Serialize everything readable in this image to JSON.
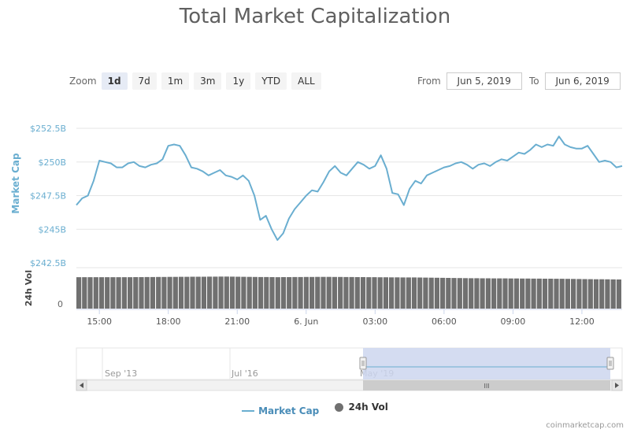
{
  "title": "Total Market Capitalization",
  "zoom": {
    "label": "Zoom",
    "buttons": [
      "1d",
      "7d",
      "1m",
      "3m",
      "1y",
      "YTD",
      "ALL"
    ],
    "active": "1d"
  },
  "range": {
    "from_label": "From",
    "from_value": "Jun 5, 2019",
    "to_label": "To",
    "to_value": "Jun 6, 2019"
  },
  "legend": {
    "market_cap": "Market Cap",
    "volume": "24h Vol"
  },
  "credit": "coinmarketcap.com",
  "colors": {
    "market_cap": "#6aaed0",
    "volume": "#707070",
    "navigator_fill": "#cdd6ee"
  },
  "chart_data": [
    {
      "type": "line",
      "title": "Total Market Capitalization",
      "ylabel": "Market Cap",
      "yunit": "USD billions",
      "ylim": [
        242.5,
        252.5
      ],
      "yticks": [
        {
          "value": 252.5,
          "label": "$252.5B"
        },
        {
          "value": 250,
          "label": "$250B"
        },
        {
          "value": 247.5,
          "label": "$247.5B"
        },
        {
          "value": 245,
          "label": "$245B"
        },
        {
          "value": 242.5,
          "label": "$242.5B"
        }
      ],
      "xlim": [
        "2019-06-05 14:00",
        "2019-06-06 13:45"
      ],
      "xticks": [
        "15:00",
        "18:00",
        "21:00",
        "6. Jun",
        "03:00",
        "06:00",
        "09:00",
        "12:00"
      ],
      "grid": true,
      "series": [
        {
          "name": "Market Cap",
          "points": [
            [
              "2019-06-05 14:00",
              246.8
            ],
            [
              "2019-06-05 14:15",
              247.3
            ],
            [
              "2019-06-05 14:30",
              247.5
            ],
            [
              "2019-06-05 14:45",
              248.6
            ],
            [
              "2019-06-05 15:00",
              250.1
            ],
            [
              "2019-06-05 15:15",
              250.0
            ],
            [
              "2019-06-05 15:30",
              249.9
            ],
            [
              "2019-06-05 15:45",
              249.6
            ],
            [
              "2019-06-05 16:00",
              249.6
            ],
            [
              "2019-06-05 16:15",
              249.9
            ],
            [
              "2019-06-05 16:30",
              250.0
            ],
            [
              "2019-06-05 16:45",
              249.7
            ],
            [
              "2019-06-05 17:00",
              249.6
            ],
            [
              "2019-06-05 17:15",
              249.8
            ],
            [
              "2019-06-05 17:30",
              249.9
            ],
            [
              "2019-06-05 17:45",
              250.2
            ],
            [
              "2019-06-05 18:00",
              251.2
            ],
            [
              "2019-06-05 18:15",
              251.3
            ],
            [
              "2019-06-05 18:30",
              251.2
            ],
            [
              "2019-06-05 18:45",
              250.5
            ],
            [
              "2019-06-05 19:00",
              249.6
            ],
            [
              "2019-06-05 19:15",
              249.5
            ],
            [
              "2019-06-05 19:30",
              249.3
            ],
            [
              "2019-06-05 19:45",
              249.0
            ],
            [
              "2019-06-05 20:00",
              249.2
            ],
            [
              "2019-06-05 20:15",
              249.4
            ],
            [
              "2019-06-05 20:30",
              249.0
            ],
            [
              "2019-06-05 20:45",
              248.9
            ],
            [
              "2019-06-05 21:00",
              248.7
            ],
            [
              "2019-06-05 21:15",
              249.0
            ],
            [
              "2019-06-05 21:30",
              248.6
            ],
            [
              "2019-06-05 21:45",
              247.5
            ],
            [
              "2019-06-05 22:00",
              245.7
            ],
            [
              "2019-06-05 22:15",
              246.0
            ],
            [
              "2019-06-05 22:30",
              245.0
            ],
            [
              "2019-06-05 22:45",
              244.2
            ],
            [
              "2019-06-05 23:00",
              244.7
            ],
            [
              "2019-06-05 23:15",
              245.8
            ],
            [
              "2019-06-05 23:30",
              246.5
            ],
            [
              "2019-06-05 23:45",
              247.0
            ],
            [
              "2019-06-06 00:00",
              247.5
            ],
            [
              "2019-06-06 00:15",
              247.9
            ],
            [
              "2019-06-06 00:30",
              247.8
            ],
            [
              "2019-06-06 00:45",
              248.5
            ],
            [
              "2019-06-06 01:00",
              249.3
            ],
            [
              "2019-06-06 01:15",
              249.7
            ],
            [
              "2019-06-06 01:30",
              249.2
            ],
            [
              "2019-06-06 01:45",
              249.0
            ],
            [
              "2019-06-06 02:00",
              249.5
            ],
            [
              "2019-06-06 02:15",
              250.0
            ],
            [
              "2019-06-06 02:30",
              249.8
            ],
            [
              "2019-06-06 02:45",
              249.5
            ],
            [
              "2019-06-06 03:00",
              249.7
            ],
            [
              "2019-06-06 03:15",
              250.5
            ],
            [
              "2019-06-06 03:30",
              249.5
            ],
            [
              "2019-06-06 03:45",
              247.7
            ],
            [
              "2019-06-06 04:00",
              247.6
            ],
            [
              "2019-06-06 04:15",
              246.8
            ],
            [
              "2019-06-06 04:30",
              248.0
            ],
            [
              "2019-06-06 04:45",
              248.6
            ],
            [
              "2019-06-06 05:00",
              248.4
            ],
            [
              "2019-06-06 05:15",
              249.0
            ],
            [
              "2019-06-06 05:30",
              249.2
            ],
            [
              "2019-06-06 05:45",
              249.4
            ],
            [
              "2019-06-06 06:00",
              249.6
            ],
            [
              "2019-06-06 06:15",
              249.7
            ],
            [
              "2019-06-06 06:30",
              249.9
            ],
            [
              "2019-06-06 06:45",
              250.0
            ],
            [
              "2019-06-06 07:00",
              249.8
            ],
            [
              "2019-06-06 07:15",
              249.5
            ],
            [
              "2019-06-06 07:30",
              249.8
            ],
            [
              "2019-06-06 07:45",
              249.9
            ],
            [
              "2019-06-06 08:00",
              249.7
            ],
            [
              "2019-06-06 08:15",
              250.0
            ],
            [
              "2019-06-06 08:30",
              250.2
            ],
            [
              "2019-06-06 08:45",
              250.1
            ],
            [
              "2019-06-06 09:00",
              250.4
            ],
            [
              "2019-06-06 09:15",
              250.7
            ],
            [
              "2019-06-06 09:30",
              250.6
            ],
            [
              "2019-06-06 09:45",
              250.9
            ],
            [
              "2019-06-06 10:00",
              251.3
            ],
            [
              "2019-06-06 10:15",
              251.1
            ],
            [
              "2019-06-06 10:30",
              251.3
            ],
            [
              "2019-06-06 10:45",
              251.2
            ],
            [
              "2019-06-06 11:00",
              251.9
            ],
            [
              "2019-06-06 11:15",
              251.3
            ],
            [
              "2019-06-06 11:30",
              251.1
            ],
            [
              "2019-06-06 11:45",
              251.0
            ],
            [
              "2019-06-06 12:00",
              251.0
            ],
            [
              "2019-06-06 12:15",
              251.2
            ],
            [
              "2019-06-06 12:30",
              250.6
            ],
            [
              "2019-06-06 12:45",
              250.0
            ],
            [
              "2019-06-06 13:00",
              250.1
            ],
            [
              "2019-06-06 13:15",
              250.0
            ],
            [
              "2019-06-06 13:30",
              249.6
            ],
            [
              "2019-06-06 13:45",
              249.7
            ]
          ]
        }
      ]
    },
    {
      "type": "bar",
      "ylabel": "24h Vol",
      "yticks": [
        {
          "value": 0,
          "label": "0"
        }
      ],
      "series": [
        {
          "name": "24h Vol",
          "relative_values": [
            0.95,
            0.95,
            0.96,
            0.97,
            0.95,
            0.96,
            0.95,
            0.94,
            0.92,
            0.91,
            0.9,
            0.88
          ]
        }
      ]
    }
  ],
  "navigator": {
    "labels": [
      "Sep '13",
      "Jul '16",
      "May '19"
    ],
    "scroll_grip": "III"
  }
}
